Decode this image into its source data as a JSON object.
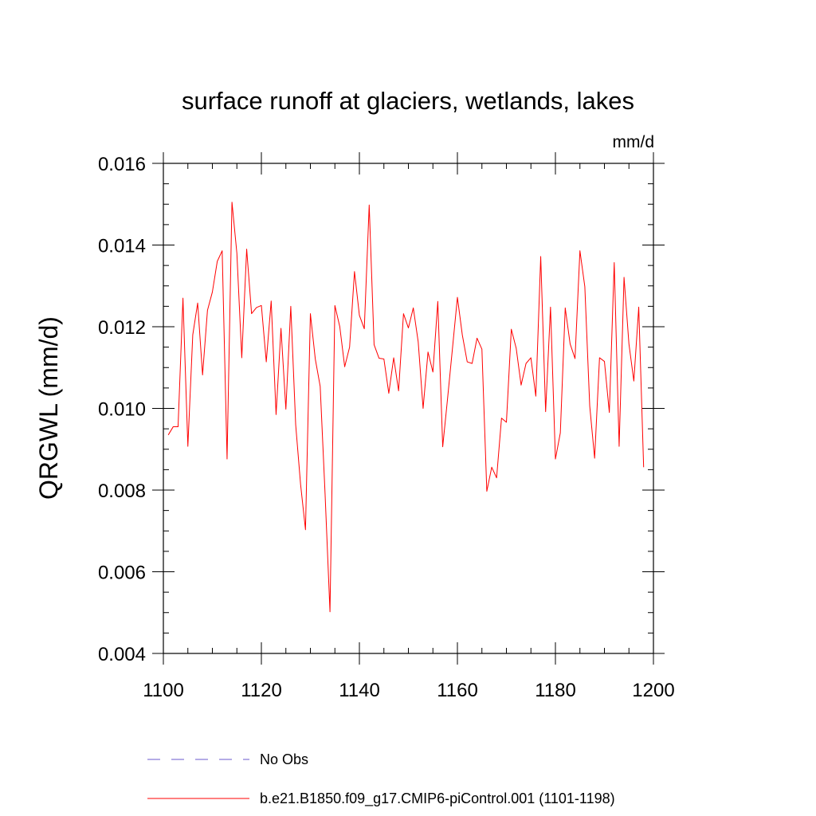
{
  "chart_data": {
    "type": "line",
    "title": "surface runoff at glaciers, wetlands, lakes",
    "units": "mm/d",
    "xlabel": "",
    "ylabel": "QRGWL  (mm/d)",
    "xlim": [
      1100,
      1200
    ],
    "ylim": [
      0.004,
      0.016
    ],
    "xticks": [
      1100,
      1120,
      1140,
      1160,
      1180,
      1200
    ],
    "xtick_labels": [
      "1100",
      "1120",
      "1140",
      "1160",
      "1180",
      "1200"
    ],
    "yticks": [
      0.004,
      0.006,
      0.008,
      0.01,
      0.012,
      0.014,
      0.016
    ],
    "ytick_labels": [
      "0.004",
      "0.006",
      "0.008",
      "0.010",
      "0.012",
      "0.014",
      "0.016"
    ],
    "grid": false,
    "legend_position": "bottom",
    "legend": [
      {
        "label": "No Obs",
        "style": "dashed",
        "color": "#6a5acd"
      },
      {
        "label": "b.e21.B1850.f09_g17.CMIP6-piControl.001 (1101-1198)",
        "style": "solid",
        "color": "#ff0000"
      }
    ],
    "series": [
      {
        "name": "b.e21.B1850.f09_g17.CMIP6-piControl.001 (1101-1198)",
        "color": "#ff0000",
        "x": [
          1101,
          1102,
          1103,
          1104,
          1105,
          1106,
          1107,
          1108,
          1109,
          1110,
          1111,
          1112,
          1113,
          1114,
          1115,
          1116,
          1117,
          1118,
          1119,
          1120,
          1121,
          1122,
          1123,
          1124,
          1125,
          1126,
          1127,
          1128,
          1129,
          1130,
          1131,
          1132,
          1133,
          1134,
          1135,
          1136,
          1137,
          1138,
          1139,
          1140,
          1141,
          1142,
          1143,
          1144,
          1145,
          1146,
          1147,
          1148,
          1149,
          1150,
          1151,
          1152,
          1153,
          1154,
          1155,
          1156,
          1157,
          1158,
          1159,
          1160,
          1161,
          1162,
          1163,
          1164,
          1165,
          1166,
          1167,
          1168,
          1169,
          1170,
          1171,
          1172,
          1173,
          1174,
          1175,
          1176,
          1177,
          1178,
          1179,
          1180,
          1181,
          1182,
          1183,
          1184,
          1185,
          1186,
          1187,
          1188,
          1189,
          1190,
          1191,
          1192,
          1193,
          1194,
          1195,
          1196,
          1197,
          1198
        ],
        "values": [
          0.00935,
          0.00955,
          0.00955,
          0.0127,
          0.00907,
          0.0118,
          0.01258,
          0.01082,
          0.0124,
          0.01285,
          0.0136,
          0.01386,
          0.00876,
          0.01505,
          0.0138,
          0.01124,
          0.0139,
          0.01232,
          0.01247,
          0.01252,
          0.01114,
          0.01263,
          0.00985,
          0.01196,
          0.00998,
          0.0125,
          0.0096,
          0.00814,
          0.00703,
          0.01232,
          0.01121,
          0.01054,
          0.0079,
          0.00502,
          0.01252,
          0.012,
          0.01102,
          0.0115,
          0.01335,
          0.01228,
          0.01195,
          0.01498,
          0.01156,
          0.01123,
          0.01121,
          0.01037,
          0.01124,
          0.01043,
          0.01232,
          0.01197,
          0.01246,
          0.01163,
          0.01,
          0.01138,
          0.01089,
          0.01262,
          0.00906,
          0.01025,
          0.01148,
          0.01272,
          0.0118,
          0.01114,
          0.0111,
          0.01172,
          0.01145,
          0.00797,
          0.00856,
          0.0083,
          0.00976,
          0.00966,
          0.01194,
          0.01147,
          0.01057,
          0.0111,
          0.01124,
          0.0103,
          0.01372,
          0.00992,
          0.01248,
          0.00876,
          0.0094,
          0.01246,
          0.01158,
          0.01122,
          0.01386,
          0.01298,
          0.01006,
          0.00878,
          0.01124,
          0.01115,
          0.0099,
          0.01357,
          0.00907,
          0.01321,
          0.01158,
          0.01067,
          0.01248,
          0.00856
        ]
      }
    ]
  }
}
